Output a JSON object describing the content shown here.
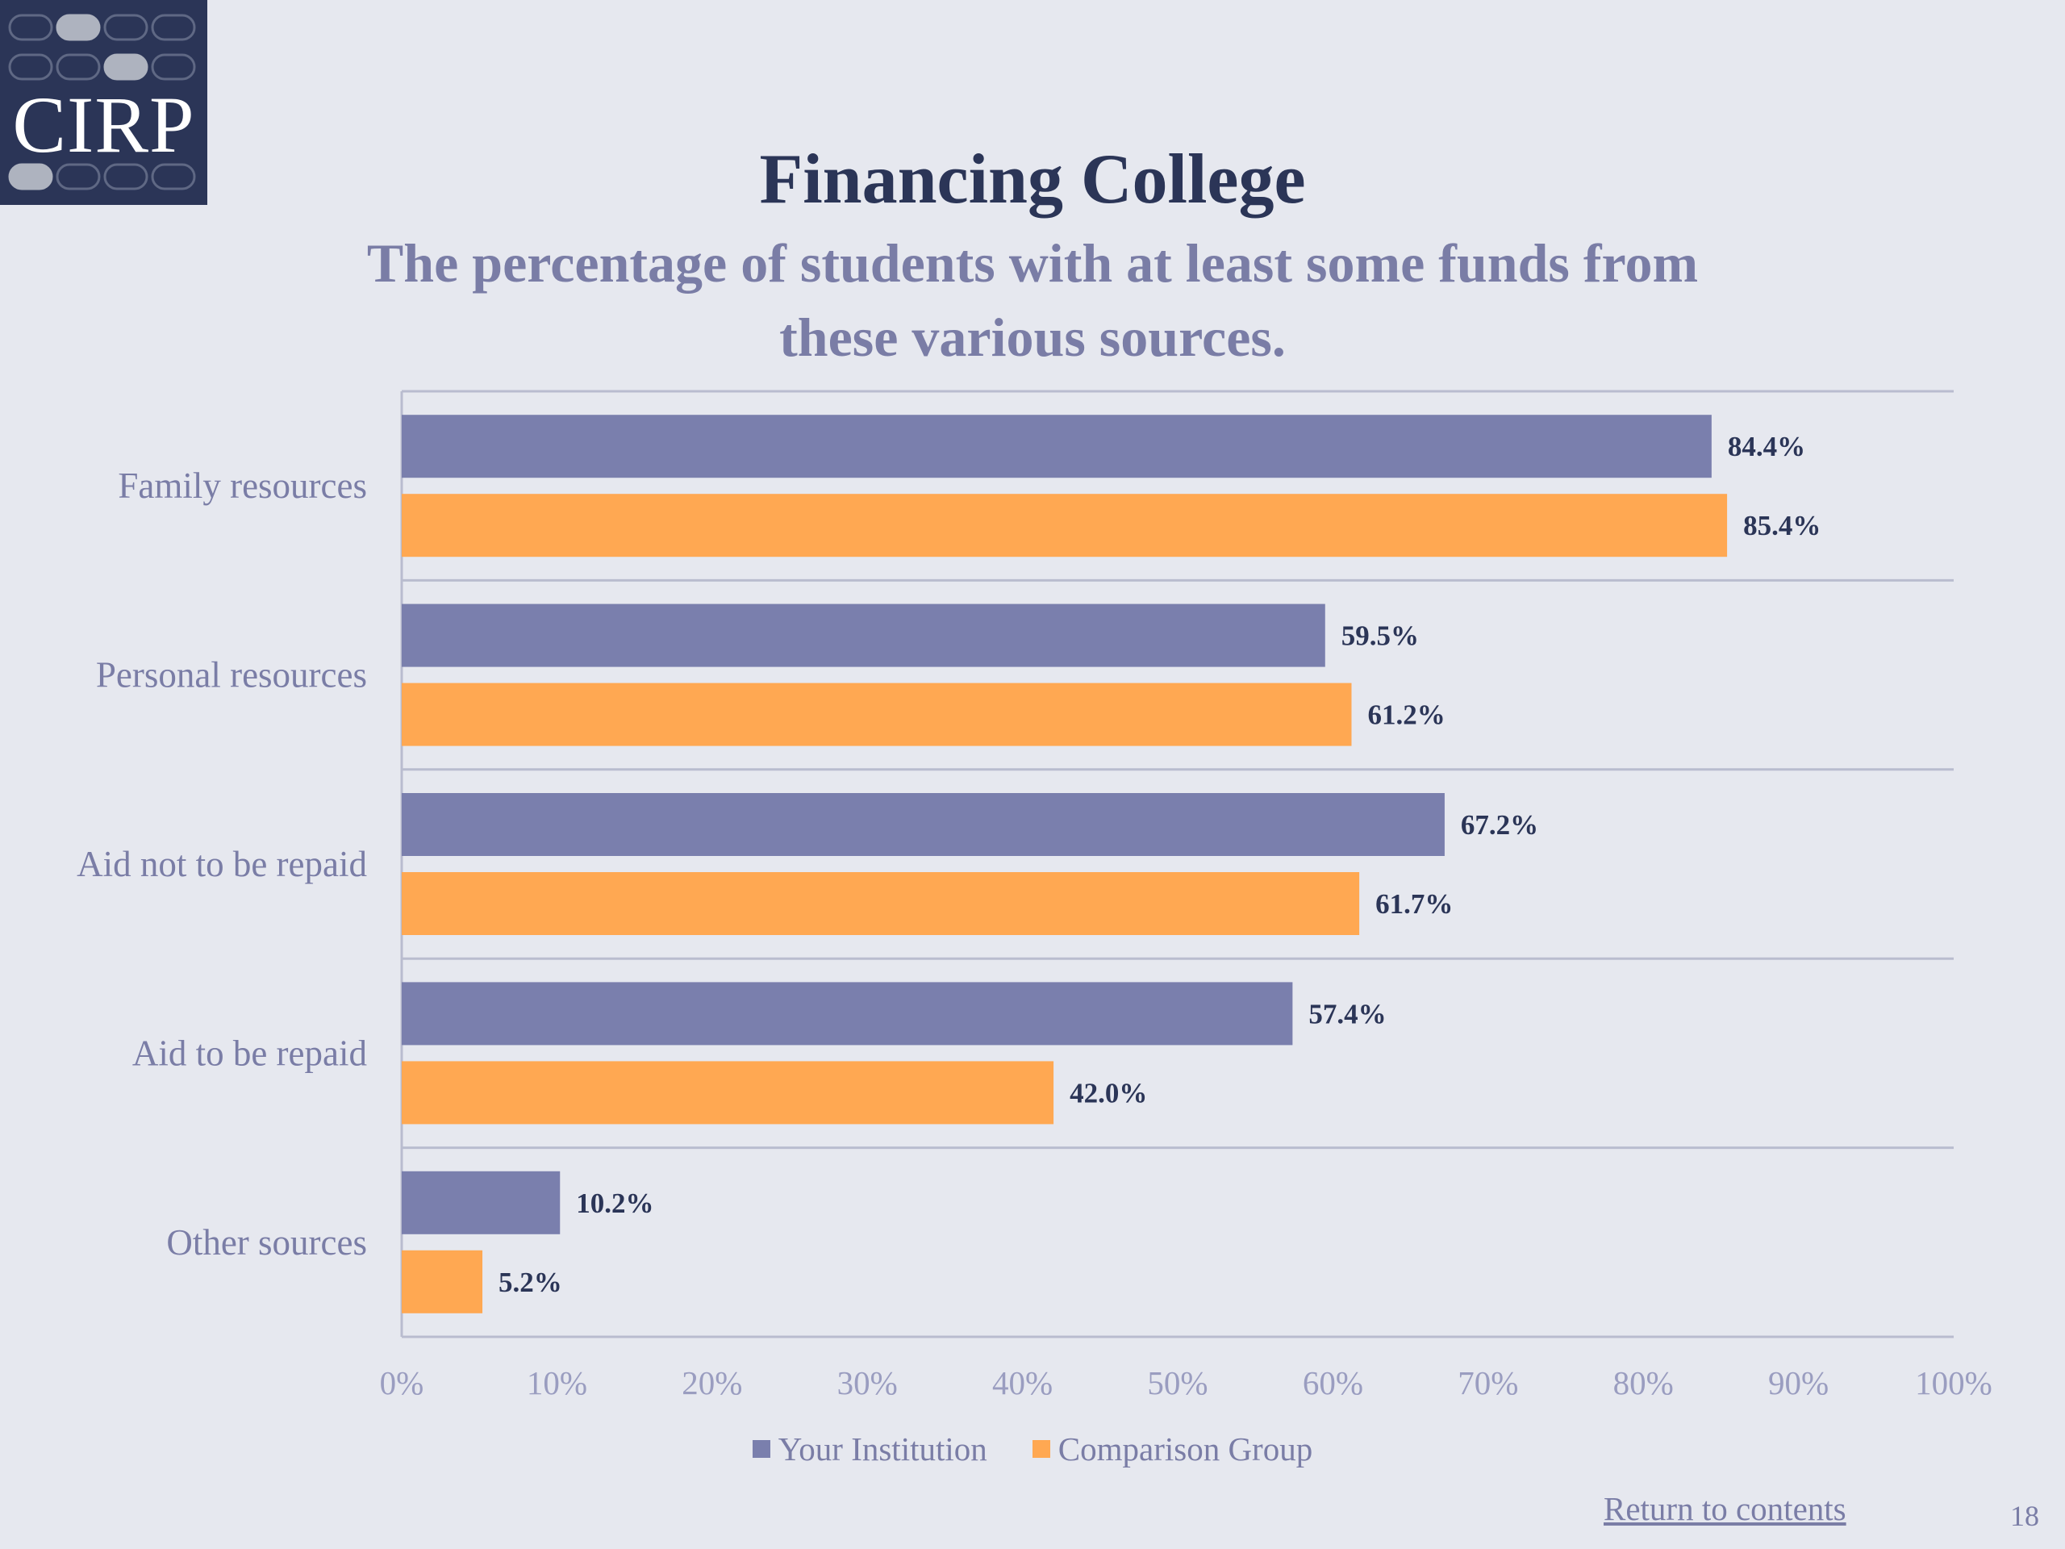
{
  "logo": {
    "text": "CIRP"
  },
  "header": {
    "title": "Financing College",
    "subtitle": "The percentage of students with at least some funds from these various sources."
  },
  "colors": {
    "series_1": "#7a7fad",
    "series_2": "#ffa852",
    "background": "#e6e8ef",
    "title": "#2b3557",
    "subtitle": "#7a7da6"
  },
  "chart_data": {
    "type": "bar",
    "orientation": "horizontal",
    "categories": [
      "Family resources",
      "Personal resources",
      "Aid not to be repaid",
      "Aid to be repaid",
      "Other sources"
    ],
    "series": [
      {
        "name": "Your Institution",
        "values": [
          84.4,
          59.5,
          67.2,
          57.4,
          10.2
        ],
        "labels": [
          "84.4%",
          "59.5%",
          "67.2%",
          "57.4%",
          "10.2%"
        ]
      },
      {
        "name": "Comparison Group",
        "values": [
          85.4,
          61.2,
          61.7,
          42.0,
          5.2
        ],
        "labels": [
          "85.4%",
          "61.2%",
          "61.7%",
          "42.0%",
          "5.2%"
        ]
      }
    ],
    "xlim": [
      0,
      100
    ],
    "xticks": [
      "0%",
      "10%",
      "20%",
      "30%",
      "40%",
      "50%",
      "60%",
      "70%",
      "80%",
      "90%",
      "100%"
    ],
    "grid": "horizontal separators between categories",
    "legend": "bottom-center"
  },
  "footer": {
    "return_link": "Return to contents",
    "page_number": "18"
  }
}
